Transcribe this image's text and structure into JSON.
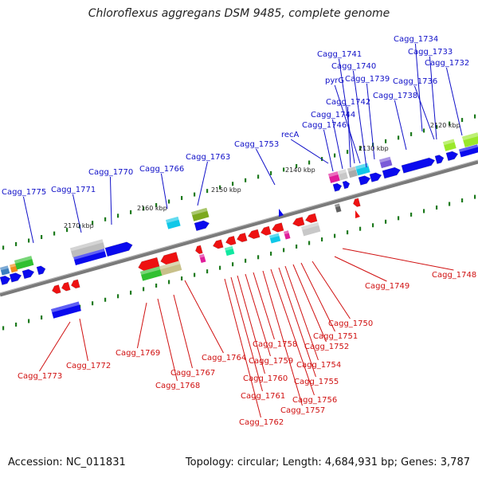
{
  "title": "Chloroflexus aggregans DSM 9485, complete genome",
  "footer": {
    "accession": "Accession: NC_011831",
    "summary": "Topology: circular; Length: 4,684,931 bp; Genes: 3,787"
  },
  "axis_ticks": [
    "2120 kbp",
    "2130 kbp",
    "2140 kbp",
    "2150 kbp",
    "2160 kbp",
    "2170 kbp"
  ],
  "labels_forward": [
    "Cagg_1734",
    "Cagg_1733",
    "Cagg_1732",
    "Cagg_1741",
    "Cagg_1740",
    "pyrG",
    "Cagg_1739",
    "Cagg_1736",
    "Cagg_1738",
    "Cagg_1742",
    "Cagg_1744",
    "Cagg_1746",
    "recA",
    "Cagg_1753",
    "Cagg_1763",
    "Cagg_1766",
    "Cagg_1770",
    "Cagg_1771",
    "Cagg_1775"
  ],
  "labels_reverse": [
    "Cagg_1748",
    "Cagg_1749",
    "Cagg_1750",
    "Cagg_1751",
    "Cagg_1752",
    "Cagg_1754",
    "Cagg_1755",
    "Cagg_1756",
    "Cagg_1757",
    "Cagg_1758",
    "Cagg_1759",
    "Cagg_1760",
    "Cagg_1761",
    "Cagg_1762",
    "Cagg_1764",
    "Cagg_1767",
    "Cagg_1768",
    "Cagg_1769",
    "Cagg_1772",
    "Cagg_1773"
  ],
  "colors": {
    "forward_cds": "#0a0aee",
    "reverse_cds": "#ee1111",
    "forward_label": "#1010c8",
    "reverse_label": "#d01010",
    "backbone": "#808080"
  }
}
